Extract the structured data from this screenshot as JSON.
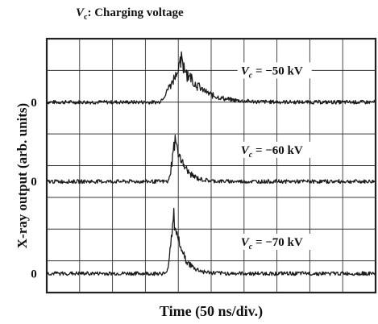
{
  "caption": {
    "symbol": "V",
    "subscript": "c",
    "text": ": Charging voltage"
  },
  "chart_data": {
    "type": "line",
    "xlabel": "Time (50 ns/div.)",
    "ylabel": "X-ray output (arb. units)",
    "x_divisions": 10,
    "y_divisions": 8,
    "x_unit_per_division_ns": 50,
    "grid": true,
    "series": [
      {
        "label_symbol": "V",
        "label_subscript": "c",
        "label_value": " = −50 kV",
        "baseline_text": "0",
        "baseline_div": 6.0,
        "peak_time_div": 4.1,
        "peak_amplitude_div": 1.3,
        "rise_div": 0.7,
        "fall_div": 0.9,
        "noise_div": 0.06
      },
      {
        "label_symbol": "V",
        "label_subscript": "c",
        "label_value": " = −60 kV",
        "baseline_text": "0",
        "baseline_div": 3.5,
        "peak_time_div": 3.9,
        "peak_amplitude_div": 1.4,
        "rise_div": 0.2,
        "fall_div": 0.45,
        "noise_div": 0.06
      },
      {
        "label_symbol": "V",
        "label_subscript": "c",
        "label_value": " = −70 kV",
        "baseline_text": "0",
        "baseline_div": 0.6,
        "peak_time_div": 3.85,
        "peak_amplitude_div": 1.9,
        "rise_div": 0.2,
        "fall_div": 0.45,
        "noise_div": 0.06
      }
    ]
  }
}
